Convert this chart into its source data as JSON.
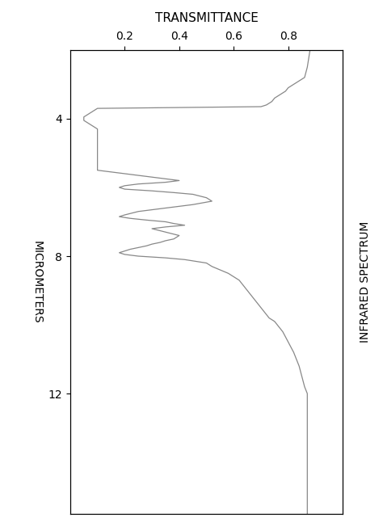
{
  "title": "TRANSMITTANCE",
  "xlabel": "MICROMETERS",
  "right_label": "INFRARED SPECTRUM",
  "xlim": [
    2.0,
    15.5
  ],
  "ylim": [
    0.0,
    1.0
  ],
  "yticks": [
    0.2,
    0.4,
    0.6,
    0.8
  ],
  "xtick_labels": [
    "4",
    "8",
    "12"
  ],
  "xtick_positions": [
    4,
    8,
    12
  ],
  "background_color": "#ffffff",
  "line_color": "#808080",
  "spectrum_x": [
    2.0,
    2.5,
    2.8,
    2.9,
    3.0,
    3.1,
    3.2,
    3.3,
    3.4,
    3.5,
    3.6,
    3.65,
    3.7,
    3.8,
    3.85,
    3.9,
    3.95,
    4.0,
    4.05,
    4.1,
    4.2,
    4.3,
    4.5,
    4.8,
    5.0,
    5.2,
    5.5,
    5.8,
    5.85,
    5.9,
    5.95,
    6.0,
    6.05,
    6.1,
    6.15,
    6.2,
    6.3,
    6.4,
    6.5,
    6.6,
    6.7,
    6.8,
    6.85,
    6.9,
    6.95,
    7.0,
    7.05,
    7.1,
    7.15,
    7.2,
    7.3,
    7.4,
    7.5,
    7.55,
    7.6,
    7.65,
    7.7,
    7.75,
    7.8,
    7.85,
    7.9,
    7.95,
    8.0,
    8.05,
    8.1,
    8.2,
    8.3,
    8.4,
    8.5,
    8.6,
    8.7,
    8.8,
    8.9,
    9.0,
    9.1,
    9.2,
    9.3,
    9.4,
    9.5,
    9.6,
    9.7,
    9.8,
    9.9,
    10.0,
    10.2,
    10.5,
    10.8,
    11.0,
    11.2,
    11.5,
    11.8,
    12.0,
    12.2,
    12.5,
    12.8,
    13.0,
    13.2,
    13.5,
    13.8,
    14.0,
    14.2,
    14.5,
    15.0,
    15.5
  ],
  "spectrum_y": [
    0.88,
    0.87,
    0.86,
    0.84,
    0.82,
    0.8,
    0.79,
    0.77,
    0.75,
    0.74,
    0.72,
    0.7,
    0.1,
    0.08,
    0.07,
    0.06,
    0.05,
    0.05,
    0.05,
    0.06,
    0.08,
    0.1,
    0.1,
    0.1,
    0.1,
    0.1,
    0.1,
    0.4,
    0.35,
    0.25,
    0.2,
    0.18,
    0.2,
    0.3,
    0.38,
    0.45,
    0.5,
    0.52,
    0.45,
    0.35,
    0.25,
    0.2,
    0.18,
    0.22,
    0.28,
    0.35,
    0.38,
    0.42,
    0.35,
    0.3,
    0.35,
    0.4,
    0.38,
    0.35,
    0.33,
    0.3,
    0.28,
    0.25,
    0.22,
    0.2,
    0.18,
    0.2,
    0.25,
    0.35,
    0.42,
    0.5,
    0.52,
    0.55,
    0.58,
    0.6,
    0.62,
    0.63,
    0.64,
    0.65,
    0.66,
    0.67,
    0.68,
    0.69,
    0.7,
    0.71,
    0.72,
    0.73,
    0.75,
    0.76,
    0.78,
    0.8,
    0.82,
    0.83,
    0.84,
    0.85,
    0.86,
    0.87,
    0.87,
    0.87,
    0.87,
    0.87,
    0.87,
    0.87,
    0.87,
    0.87,
    0.87,
    0.87,
    0.87,
    0.87
  ]
}
